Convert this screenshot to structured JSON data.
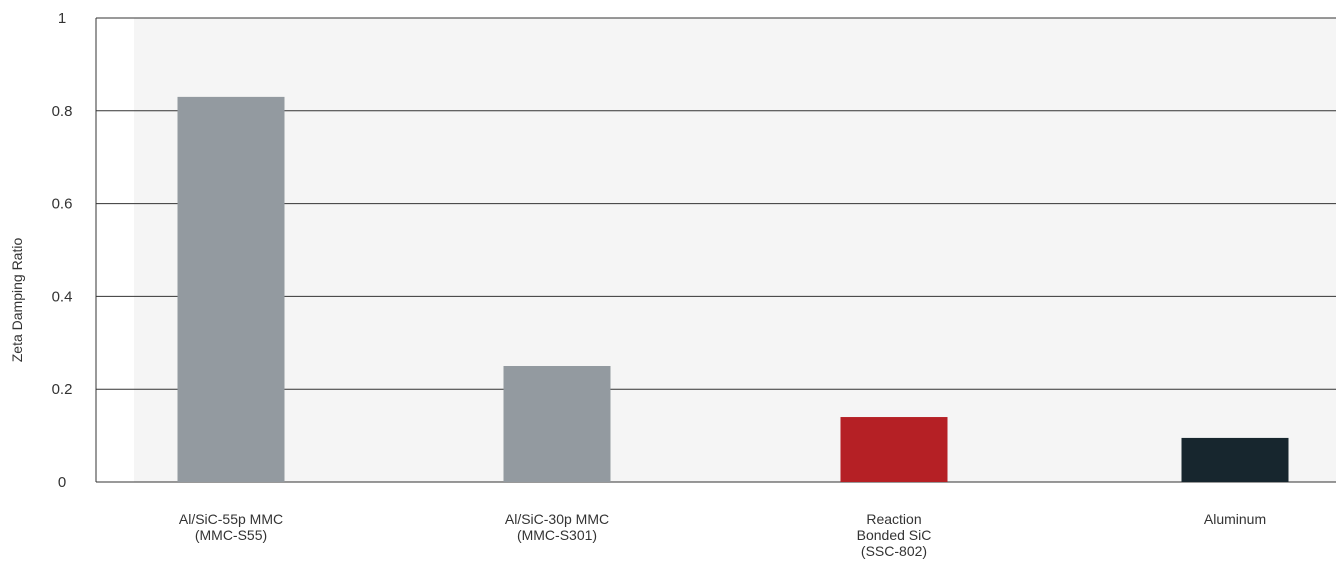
{
  "chart_data": {
    "type": "bar",
    "title": "",
    "xlabel": "",
    "ylabel": "Zeta Damping Ratio",
    "ylim": [
      0,
      1
    ],
    "yticks": [
      0,
      0.2,
      0.4,
      0.6,
      0.8,
      1
    ],
    "ytick_labels": [
      "0",
      "0.2",
      "0.4",
      "0.6",
      "0.8",
      "1"
    ],
    "grid": true,
    "legend": "none",
    "categories": [
      [
        "Al/SiC-55p MMC",
        "(MMC-S55)"
      ],
      [
        "Al/SiC-30p MMC",
        "(MMC-S301)"
      ],
      [
        "Reaction",
        "Bonded SiC",
        "(SSC-802)"
      ],
      [
        "Aluminum"
      ]
    ],
    "values": [
      0.83,
      0.25,
      0.14,
      0.095
    ],
    "colors": [
      "#939aa0",
      "#939aa0",
      "#b52025",
      "#17262e"
    ],
    "plot_background": "#f5f5f5"
  }
}
